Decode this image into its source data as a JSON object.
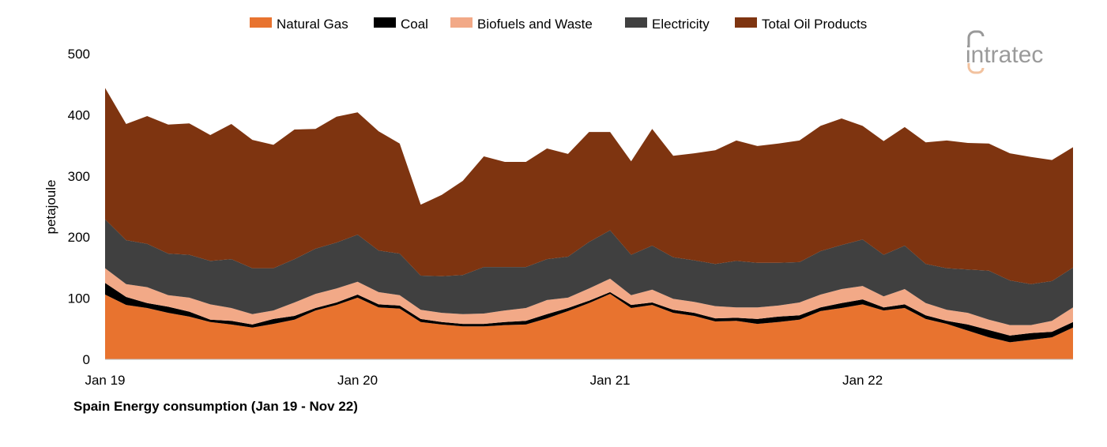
{
  "chart_data": {
    "type": "area",
    "stacked": true,
    "title": "Spain Energy consumption (Jan 19 - Nov 22)",
    "xlabel": "",
    "ylabel": "petajoule",
    "ylim": [
      0,
      500
    ],
    "yticks": [
      0,
      100,
      200,
      300,
      400,
      500
    ],
    "xtick_labels": [
      "Jan 19",
      "Jan 20",
      "Jan 21",
      "Jan 22"
    ],
    "grid": false,
    "legend_position": "top",
    "categories": [
      "Jan 19",
      "Feb 19",
      "Mar 19",
      "Apr 19",
      "May 19",
      "Jun 19",
      "Jul 19",
      "Aug 19",
      "Sep 19",
      "Oct 19",
      "Nov 19",
      "Dec 19",
      "Jan 20",
      "Feb 20",
      "Mar 20",
      "Apr 20",
      "May 20",
      "Jun 20",
      "Jul 20",
      "Aug 20",
      "Sep 20",
      "Oct 20",
      "Nov 20",
      "Dec 20",
      "Jan 21",
      "Feb 21",
      "Mar 21",
      "Apr 21",
      "May 21",
      "Jun 21",
      "Jul 21",
      "Aug 21",
      "Sep 21",
      "Oct 21",
      "Nov 21",
      "Dec 21",
      "Jan 22",
      "Feb 22",
      "Mar 22",
      "Apr 22",
      "May 22",
      "Jun 22",
      "Jul 22",
      "Aug 22",
      "Sep 22",
      "Oct 22",
      "Nov 22"
    ],
    "series": [
      {
        "name": "Natural Gas",
        "color": "#E8732F",
        "values": [
          106,
          89,
          84,
          76,
          70,
          61,
          57,
          52,
          58,
          65,
          80,
          89,
          101,
          85,
          83,
          61,
          57,
          54,
          54,
          56,
          57,
          67,
          79,
          92,
          107,
          84,
          89,
          76,
          71,
          62,
          63,
          58,
          61,
          65,
          79,
          84,
          90,
          80,
          84,
          66,
          58,
          47,
          36,
          28,
          32,
          36,
          52
        ]
      },
      {
        "name": "Coal",
        "color": "#000000",
        "values": [
          19,
          13,
          8,
          10,
          8,
          4,
          6,
          5,
          8,
          6,
          4,
          4,
          5,
          5,
          5,
          5,
          4,
          4,
          4,
          5,
          6,
          7,
          5,
          4,
          3,
          5,
          4,
          5,
          5,
          5,
          5,
          8,
          9,
          7,
          6,
          8,
          8,
          5,
          6,
          6,
          5,
          10,
          12,
          11,
          11,
          9,
          9
        ]
      },
      {
        "name": "Biofuels and Waste",
        "color": "#F2A987",
        "values": [
          24,
          21,
          26,
          19,
          23,
          25,
          21,
          17,
          14,
          22,
          23,
          23,
          21,
          20,
          17,
          15,
          15,
          16,
          17,
          19,
          21,
          23,
          17,
          20,
          22,
          16,
          21,
          18,
          18,
          20,
          17,
          19,
          18,
          21,
          21,
          23,
          22,
          18,
          25,
          20,
          18,
          19,
          17,
          17,
          13,
          18,
          24
        ]
      },
      {
        "name": "Electricity",
        "color": "#404040",
        "values": [
          80,
          72,
          71,
          68,
          70,
          71,
          80,
          75,
          69,
          71,
          74,
          75,
          77,
          68,
          68,
          56,
          60,
          64,
          76,
          71,
          67,
          67,
          67,
          76,
          79,
          66,
          72,
          68,
          68,
          69,
          76,
          73,
          70,
          66,
          71,
          72,
          76,
          68,
          71,
          64,
          68,
          71,
          80,
          73,
          67,
          65,
          65
        ]
      },
      {
        "name": "Total Oil Products",
        "color": "#7E3410",
        "values": [
          215,
          190,
          209,
          211,
          215,
          206,
          221,
          210,
          202,
          212,
          196,
          206,
          200,
          195,
          180,
          116,
          133,
          154,
          181,
          172,
          172,
          181,
          168,
          180,
          161,
          153,
          191,
          166,
          175,
          186,
          197,
          191,
          195,
          199,
          205,
          207,
          186,
          186,
          194,
          199,
          209,
          207,
          208,
          208,
          208,
          198,
          197
        ]
      }
    ]
  },
  "logo": {
    "text": "intratec"
  }
}
